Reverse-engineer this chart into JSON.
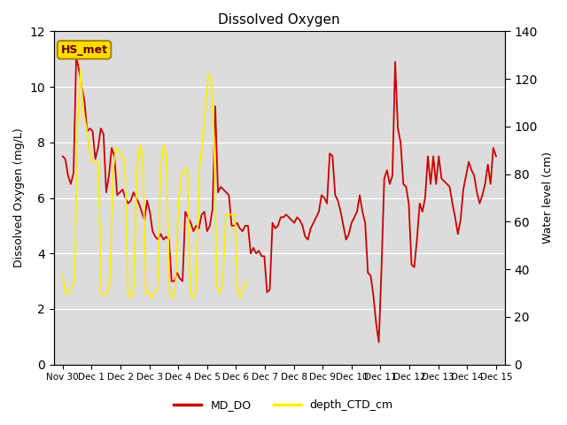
{
  "title": "Dissolved Oxygen",
  "ylabel_left": "Dissolved Oxygen (mg/L)",
  "ylabel_right": "Water level (cm)",
  "ylim_left": [
    0,
    12
  ],
  "ylim_right": [
    0,
    140
  ],
  "bg_color": "#dcdcdc",
  "fig_bg": "#ffffff",
  "annotation_text": "HS_met",
  "annotation_bg": "#ffdd00",
  "annotation_edge": "#aa8800",
  "legend_labels": [
    "MD_DO",
    "depth_CTD_cm"
  ],
  "line1_color": "#cc0000",
  "line2_color": "#ffee00",
  "xlabel_ticks": [
    "Nov 30",
    "Dec 1",
    "Dec 2",
    "Dec 3",
    "Dec 4",
    "Dec 5",
    "Dec 6",
    "Dec 7",
    "Dec 8",
    "Dec 9",
    "Dec 10",
    "Dec 11",
    "Dec 12",
    "Dec 13",
    "Dec 14",
    "Dec 15"
  ],
  "md_do": [
    7.5,
    7.4,
    6.8,
    6.5,
    6.9,
    11.1,
    10.6,
    10.0,
    9.5,
    8.4,
    8.5,
    8.4,
    7.4,
    7.8,
    8.5,
    8.3,
    6.2,
    6.8,
    7.8,
    7.5,
    6.1,
    6.2,
    6.3,
    6.0,
    5.8,
    5.9,
    6.2,
    6.0,
    5.8,
    5.5,
    5.2,
    5.9,
    5.5,
    4.8,
    4.6,
    4.5,
    4.7,
    4.5,
    4.6,
    4.5,
    3.0,
    3.0,
    3.3,
    3.1,
    3.0,
    5.5,
    5.3,
    5.1,
    4.8,
    5.0,
    4.9,
    5.4,
    5.5,
    4.8,
    5.0,
    5.6,
    9.3,
    6.2,
    6.4,
    6.3,
    6.2,
    6.1,
    5.0,
    5.0,
    5.1,
    4.9,
    4.8,
    5.0,
    5.0,
    4.0,
    4.2,
    4.0,
    4.1,
    3.9,
    3.9,
    2.6,
    2.7,
    5.1,
    4.9,
    5.0,
    5.3,
    5.3,
    5.4,
    5.3,
    5.2,
    5.1,
    5.3,
    5.2,
    5.0,
    4.6,
    4.5,
    4.9,
    5.1,
    5.3,
    5.5,
    6.1,
    6.0,
    5.8,
    7.6,
    7.5,
    6.1,
    5.9,
    5.5,
    5.0,
    4.5,
    4.7,
    5.1,
    5.3,
    5.5,
    6.1,
    5.5,
    5.1,
    3.3,
    3.2,
    2.5,
    1.5,
    0.8,
    3.5,
    6.7,
    7.0,
    6.5,
    6.8,
    10.9,
    8.5,
    8.0,
    6.5,
    6.4,
    5.8,
    3.6,
    3.5,
    4.5,
    5.8,
    5.5,
    6.0,
    7.5,
    6.5,
    7.5,
    6.5,
    7.5,
    6.7,
    6.6,
    6.5,
    6.4,
    5.8,
    5.3,
    4.7,
    5.2,
    6.3,
    6.8,
    7.3,
    7.0,
    6.8,
    6.2,
    5.8,
    6.1,
    6.5,
    7.2,
    6.5,
    7.8,
    7.5
  ],
  "depth_ctd": [
    38,
    30,
    30,
    32,
    35,
    100,
    124,
    106,
    100,
    90,
    85,
    85,
    85,
    30,
    29,
    30,
    35,
    82,
    91,
    90,
    88,
    85,
    30,
    28,
    32,
    82,
    92,
    88,
    30,
    30,
    28,
    30,
    32,
    82,
    92,
    88,
    30,
    28,
    32,
    68,
    80,
    82,
    82,
    30,
    28,
    32,
    82,
    92,
    104,
    122,
    120,
    96,
    32,
    30,
    36,
    63,
    63,
    63,
    63,
    30,
    28,
    32,
    35,
    null,
    null,
    null,
    null,
    null,
    null,
    null,
    null,
    null,
    null,
    null,
    null,
    null,
    null,
    null,
    null,
    null,
    null,
    null,
    null,
    null,
    null,
    null,
    null,
    null,
    null,
    null,
    null,
    null,
    null,
    null,
    null,
    null,
    null,
    null,
    null,
    null,
    null,
    null,
    null,
    null,
    null,
    null,
    null,
    null,
    null,
    null,
    null,
    null,
    null,
    null,
    null,
    null,
    null,
    null,
    null,
    null,
    null,
    null,
    null,
    null,
    null,
    null,
    null,
    null,
    null,
    null,
    null,
    null,
    null,
    null,
    null,
    null,
    null,
    null,
    null,
    null,
    null,
    null,
    null,
    null,
    null,
    null,
    null
  ]
}
